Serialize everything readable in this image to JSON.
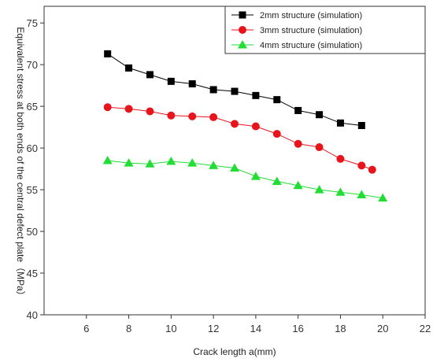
{
  "chart_data": {
    "type": "line",
    "title": "",
    "xlabel": "Crack length a(mm)",
    "ylabel": "Equivalent stress at both ends of the central defect plate（MPa）",
    "xlim": [
      4,
      22
    ],
    "ylim": [
      40,
      77
    ],
    "x_ticks": [
      6,
      8,
      10,
      12,
      14,
      16,
      18,
      20,
      22
    ],
    "y_ticks": [
      40,
      45,
      50,
      55,
      60,
      65,
      70,
      75
    ],
    "grid": false,
    "legend_position": "top-right",
    "series": [
      {
        "name": "2mm structure (simulation)",
        "color": "#000000",
        "marker": "square",
        "x": [
          7,
          8,
          9,
          10,
          11,
          12,
          13,
          14,
          15,
          16,
          17,
          18,
          19
        ],
        "y": [
          71.3,
          69.6,
          68.8,
          68.0,
          67.7,
          67.0,
          66.8,
          66.3,
          65.8,
          64.5,
          64.0,
          63.0,
          62.7
        ]
      },
      {
        "name": "3mm structure (simulation)",
        "color": "#e8141c",
        "marker": "circle",
        "x": [
          7,
          8,
          9,
          10,
          11,
          12,
          13,
          14,
          15,
          16,
          17,
          18,
          19,
          19.5
        ],
        "y": [
          64.9,
          64.7,
          64.4,
          63.9,
          63.8,
          63.7,
          62.9,
          62.6,
          61.7,
          60.5,
          60.1,
          58.7,
          57.9,
          57.4
        ]
      },
      {
        "name": "4mm structure (simulation)",
        "color": "#22dd33",
        "marker": "triangle",
        "x": [
          7,
          8,
          9,
          10,
          11,
          12,
          13,
          14,
          15,
          16,
          17,
          18,
          19,
          20
        ],
        "y": [
          58.5,
          58.2,
          58.1,
          58.4,
          58.2,
          57.9,
          57.6,
          56.6,
          56.0,
          55.5,
          55.0,
          54.7,
          54.4,
          54.0
        ]
      }
    ]
  }
}
